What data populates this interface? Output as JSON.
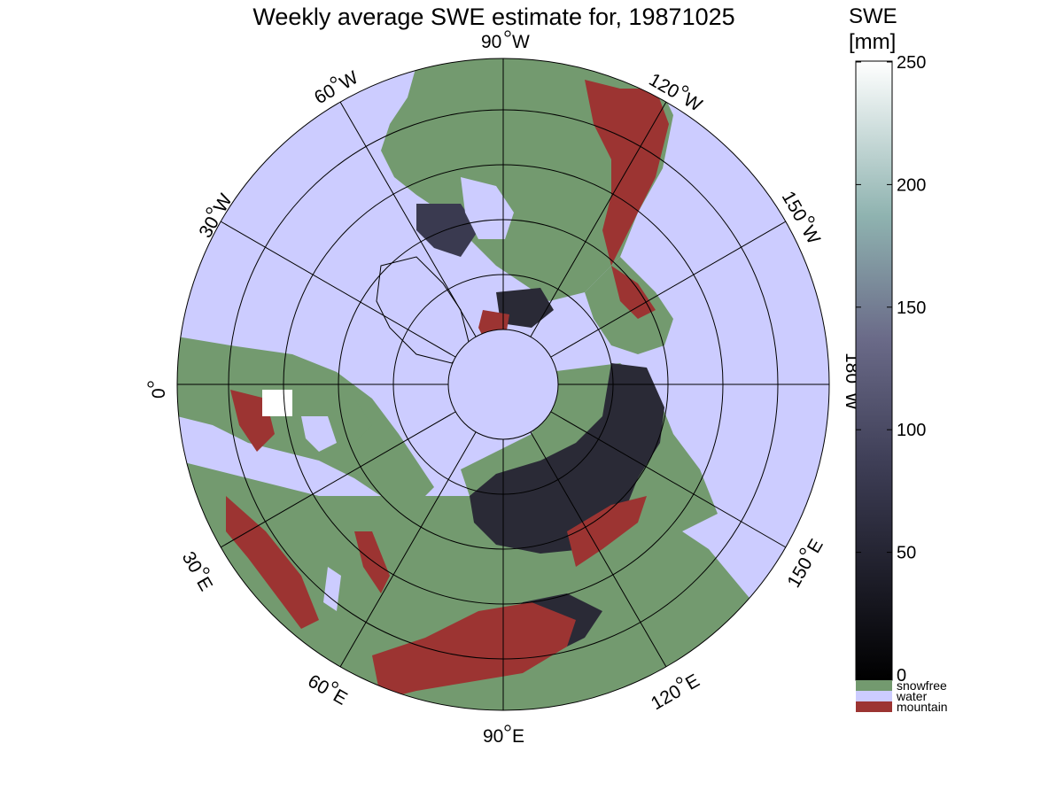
{
  "title": "Weekly average SWE estimate for, 19871025",
  "colorbar": {
    "title_line1": "SWE",
    "title_line2": "[mm]",
    "ticks": [
      "0",
      "50",
      "100",
      "150",
      "200",
      "250"
    ],
    "range": [
      0,
      250
    ],
    "colors": {
      "low": "#000000",
      "mid": "#5a5a7a",
      "high_mid": "#8fb3b0",
      "high": "#ffffff"
    },
    "classes": [
      {
        "label": "snowfree",
        "color": "#739a6f"
      },
      {
        "label": "water",
        "color": "#ccccff"
      },
      {
        "label": "mountain",
        "color": "#9c3432"
      }
    ]
  },
  "map": {
    "projection": "polar (north pole centred)",
    "ocean_color": "#ccccff",
    "land_color": "#739a6f",
    "snow_color": "#2a2a36",
    "mountain_color": "#9c3432",
    "longitude_labels": {
      "lon_90w": "90",
      "lon_90w_suffix": "W",
      "lon_120w": "120",
      "lon_120w_suffix": "W",
      "lon_150w": "150",
      "lon_150w_suffix": "W",
      "lon_180w": "180",
      "lon_180w_suffix": "W",
      "lon_60w": "60",
      "lon_60w_suffix": "W",
      "lon_30w": "30",
      "lon_30w_suffix": "W",
      "lon_0": "0",
      "lon_30e": "30",
      "lon_30e_suffix": "E",
      "lon_60e": "60",
      "lon_60e_suffix": "E",
      "lon_90e": "90",
      "lon_90e_suffix": "E",
      "lon_120e": "120",
      "lon_120e_suffix": "E",
      "lon_150e": "150",
      "lon_150e_suffix": "E"
    }
  }
}
